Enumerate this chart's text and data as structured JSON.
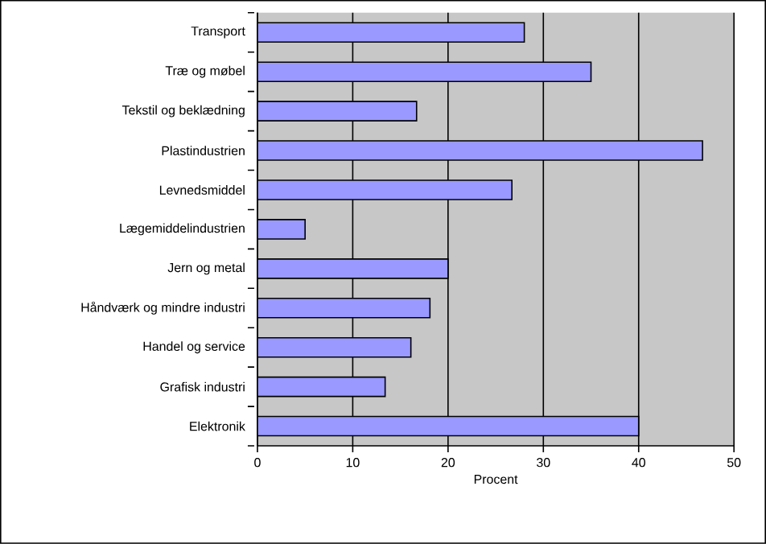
{
  "chart_data": {
    "type": "bar",
    "orientation": "horizontal",
    "xlabel": "Procent",
    "categories": [
      "Transport",
      "Træ og møbel",
      "Tekstil og beklædning",
      "Plastindustrien",
      "Levnedsmiddel",
      "Lægemiddelindustrien",
      "Jern og metal",
      "Håndværk og mindre industri",
      "Handel og service",
      "Grafisk industri",
      "Elektronik"
    ],
    "values": [
      28.0,
      35.0,
      16.7,
      46.7,
      26.7,
      5.0,
      20.0,
      18.1,
      16.1,
      13.4,
      40.0
    ],
    "color": "#9999ff",
    "xlim": [
      0,
      50
    ],
    "xticks": [
      0,
      10,
      20,
      30,
      40,
      50
    ],
    "grid": "x"
  }
}
